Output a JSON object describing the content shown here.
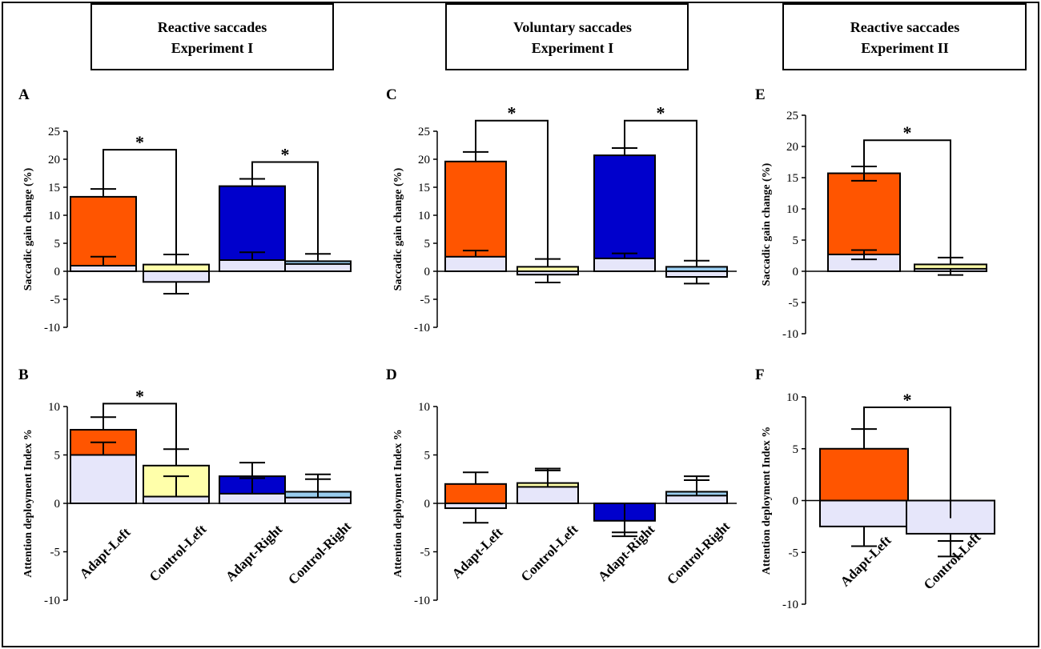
{
  "colors": {
    "adapt_left": "#ff5500",
    "control_left": "#ffffaa",
    "adapt_right": "#0000cc",
    "control_right": "#99ccee",
    "lavender": "#e6e6fa"
  },
  "headers": [
    {
      "line1": "Reactive saccades",
      "line2": "Experiment I"
    },
    {
      "line1": "Voluntary saccades",
      "line2": "Experiment I"
    },
    {
      "line1": "Reactive saccades",
      "line2": "Experiment II"
    }
  ],
  "chart_data": [
    {
      "panel": "A",
      "type": "bar",
      "ylabel": "Saccadic gain change (%)",
      "ylim": [
        -10,
        25
      ],
      "yticks": [
        -10,
        -5,
        0,
        5,
        10,
        15,
        20,
        25
      ],
      "categories": [],
      "bars": [
        {
          "category": "Adapt-Left",
          "top": 13.3,
          "top_err": 14.7,
          "inner": 1.0,
          "inner_err": 2.6,
          "color": "adapt_left"
        },
        {
          "category": "Control-Left",
          "top": 1.2,
          "top_err": 3.0,
          "inner": -1.9,
          "inner_err": -4.0,
          "color": "control_left"
        },
        {
          "category": "Adapt-Right",
          "top": 15.2,
          "top_err": 16.5,
          "inner": 2.0,
          "inner_err": 3.4,
          "color": "adapt_right"
        },
        {
          "category": "Control-Right",
          "top": 1.8,
          "top_err": 3.1,
          "inner": 1.3,
          "inner_err": null,
          "color": "control_right"
        }
      ],
      "significance": [
        {
          "from": 0,
          "to": 1,
          "level": 21.7,
          "label": "*"
        },
        {
          "from": 2,
          "to": 3,
          "level": 19.5,
          "label": "*"
        }
      ]
    },
    {
      "panel": "B",
      "type": "bar",
      "ylabel": "Attention deployment Index %",
      "ylim": [
        -10,
        10
      ],
      "yticks": [
        -10,
        -5,
        0,
        5,
        10
      ],
      "categories": [
        "Adapt-Left",
        "Control-Left",
        "Adapt-Right",
        "Control-Right"
      ],
      "bars": [
        {
          "category": "Adapt-Left",
          "top": 7.6,
          "top_err": 8.9,
          "inner": 5.0,
          "inner_err": 6.3,
          "color": "adapt_left"
        },
        {
          "category": "Control-Left",
          "top": 3.9,
          "top_err": 5.6,
          "inner": 0.7,
          "inner_err": 2.8,
          "color": "control_left"
        },
        {
          "category": "Adapt-Right",
          "top": 2.8,
          "top_err": 4.2,
          "inner": 1.0,
          "inner_err": 2.6,
          "color": "adapt_right"
        },
        {
          "category": "Control-Right",
          "top": 1.2,
          "top_err": 3.0,
          "inner": 0.6,
          "inner_err": 2.5,
          "color": "control_right"
        }
      ],
      "significance": [
        {
          "from": 0,
          "to": 1,
          "level": 10.3,
          "label": "*"
        }
      ]
    },
    {
      "panel": "C",
      "type": "bar",
      "ylabel": "Saccadic gain change (%)",
      "ylim": [
        -10,
        25
      ],
      "yticks": [
        -10,
        -5,
        0,
        5,
        10,
        15,
        20,
        25
      ],
      "categories": [],
      "bars": [
        {
          "category": "Adapt-Left",
          "top": 19.6,
          "top_err": 21.3,
          "inner": 2.6,
          "inner_err": 3.7,
          "color": "adapt_left"
        },
        {
          "category": "Control-Left",
          "top": 0.8,
          "top_err": 2.2,
          "inner": -0.6,
          "inner_err": -2.0,
          "color": "control_left"
        },
        {
          "category": "Adapt-Right",
          "top": 20.7,
          "top_err": 22.0,
          "inner": 2.3,
          "inner_err": 3.2,
          "color": "adapt_right"
        },
        {
          "category": "Control-Right",
          "top": 0.8,
          "top_err": 1.9,
          "inner": -1.0,
          "inner_err": -2.2,
          "color": "control_right"
        }
      ],
      "significance": [
        {
          "from": 0,
          "to": 1,
          "level": 26.9,
          "label": "*"
        },
        {
          "from": 2,
          "to": 3,
          "level": 26.9,
          "label": "*"
        }
      ]
    },
    {
      "panel": "D",
      "type": "bar",
      "ylabel": "Attention deployment Index %",
      "ylim": [
        -10,
        10
      ],
      "yticks": [
        -10,
        -5,
        0,
        5,
        10
      ],
      "categories": [
        "Adapt-Left",
        "Control-Left",
        "Adapt-Right",
        "Control-Right"
      ],
      "bars": [
        {
          "category": "Adapt-Left",
          "top": 2.0,
          "top_err": 3.2,
          "inner": -0.5,
          "inner_err": -2.0,
          "color": "adapt_left"
        },
        {
          "category": "Control-Left",
          "top": 2.1,
          "top_err": 3.6,
          "inner": 1.7,
          "inner_err": 3.4,
          "color": "control_left"
        },
        {
          "category": "Adapt-Right",
          "top": -1.8,
          "top_err": -3.4,
          "inner": 0.0,
          "inner_err": -3.0,
          "color": "adapt_right"
        },
        {
          "category": "Control-Right",
          "top": 1.2,
          "top_err": 2.8,
          "inner": 0.8,
          "inner_err": 2.4,
          "color": "control_right"
        }
      ],
      "significance": []
    },
    {
      "panel": "E",
      "type": "bar",
      "ylabel": "Saccadic gain change (%)",
      "ylim": [
        -10,
        25
      ],
      "yticks": [
        -10,
        -5,
        0,
        5,
        10,
        15,
        20,
        25
      ],
      "categories": [],
      "bars": [
        {
          "category": "Adapt-Left",
          "top": 15.7,
          "top_err": 16.8,
          "inner": 2.7,
          "inner_err": 3.4,
          "color": "adapt_left",
          "top_err_low": 14.5,
          "inner_err_low": 1.9
        },
        {
          "category": "Control-Left",
          "top": 1.1,
          "top_err": 2.2,
          "inner": 0.4,
          "inner_err": -0.6,
          "color": "control_left"
        }
      ],
      "significance": [
        {
          "from": 0,
          "to": 1,
          "level": 21.0,
          "label": "*"
        }
      ]
    },
    {
      "panel": "F",
      "type": "bar",
      "ylabel": "Attention deployment Index %",
      "ylim": [
        -10,
        10
      ],
      "yticks": [
        -10,
        -5,
        0,
        5,
        10
      ],
      "categories": [
        "Adapt-Left",
        "Control-Left"
      ],
      "bars": [
        {
          "category": "Adapt-Left",
          "top": 5.0,
          "top_err": 6.9,
          "inner": -2.5,
          "inner_err": -4.4,
          "color": "adapt_left"
        },
        {
          "category": "Control-Left",
          "top": -1.7,
          "top_err": -3.9,
          "inner": -3.2,
          "inner_err": -5.4,
          "color": "control_left"
        }
      ],
      "significance": [
        {
          "from": 0,
          "to": 1,
          "level": 9.0,
          "label": "*"
        }
      ]
    }
  ]
}
